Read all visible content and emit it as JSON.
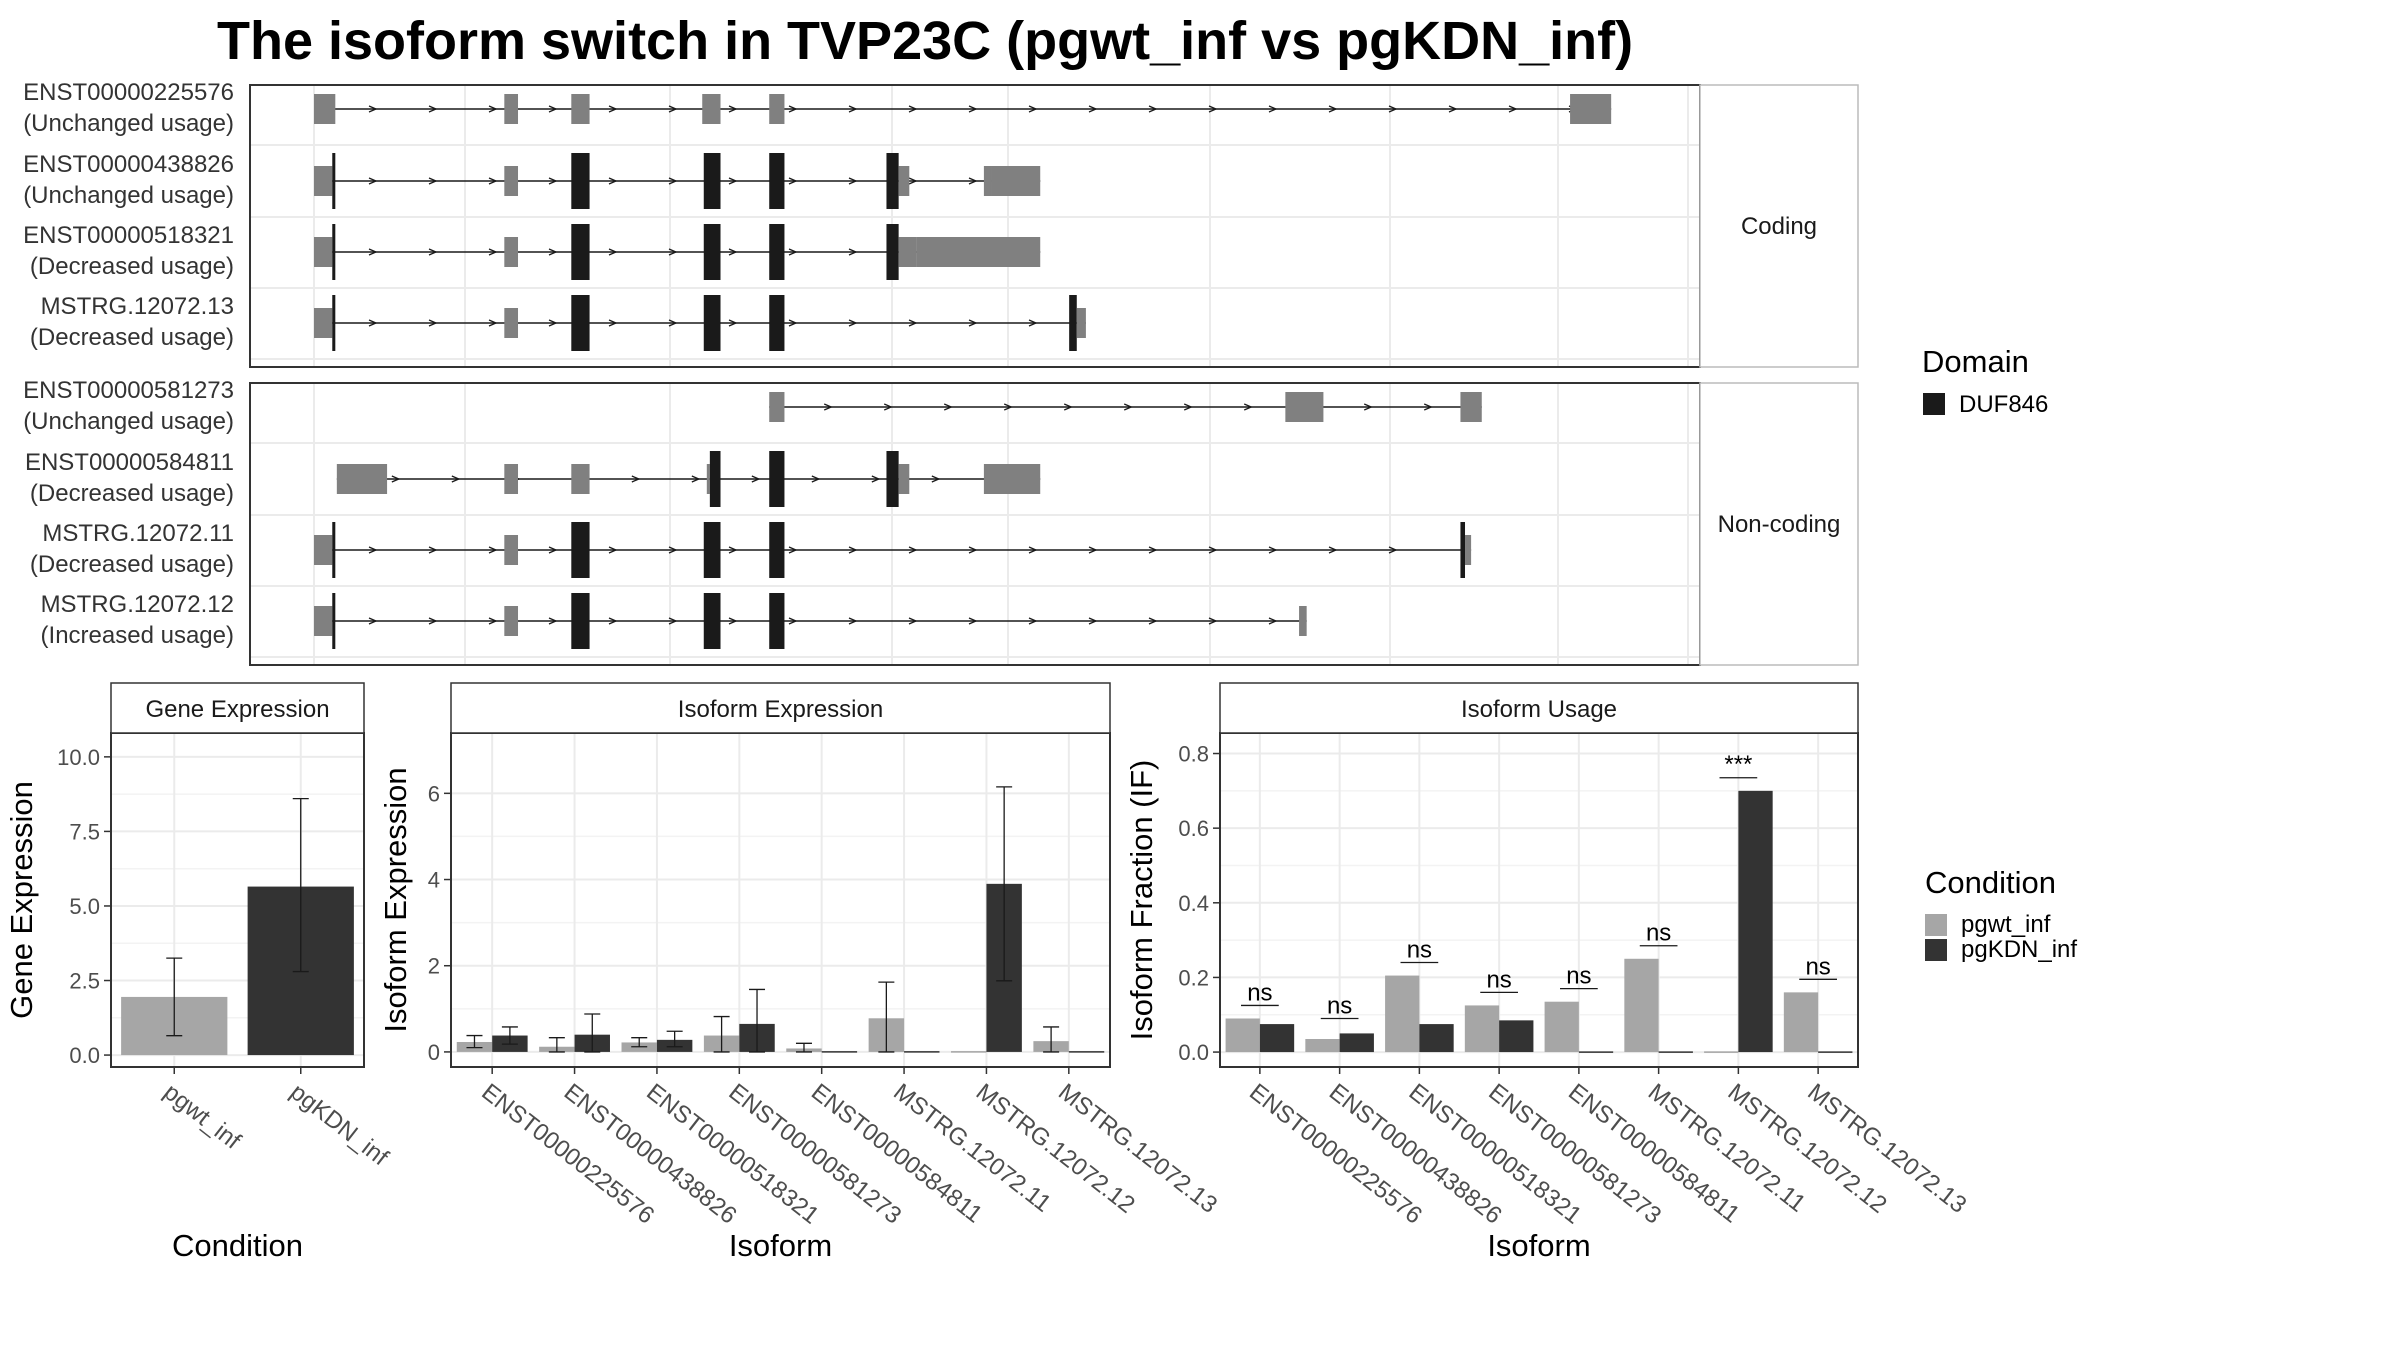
{
  "title": "The isoform switch in TVP23C (pgwt_inf vs pgKDN_inf)",
  "colors": {
    "utr": "#808080",
    "cds": "#1a1a1a",
    "pgwt": "#a6a6a6",
    "pgkdn": "#333333",
    "panel_border": "#333333",
    "strip_bg": "#ffffff",
    "grid": "#ebebeb"
  },
  "transcripts": {
    "facets": [
      {
        "label": "Coding",
        "rows": [
          {
            "line1": "ENST00000225576",
            "line2": "(Unchanged usage)",
            "span": [
              203,
              1055
            ],
            "exons": [
              [
                203,
                217,
                "u"
              ],
              [
                328,
                337,
                "u"
              ],
              [
                372,
                384,
                "u"
              ],
              [
                458,
                470,
                "u"
              ],
              [
                502,
                512,
                "u"
              ],
              [
                1028,
                1055,
                "u"
              ]
            ]
          },
          {
            "line1": "ENST00000438826",
            "line2": "(Unchanged usage)",
            "span": [
              203,
              680
            ],
            "exons": [
              [
                203,
                215,
                "u"
              ],
              [
                215,
                217,
                "c"
              ],
              [
                328,
                337,
                "u"
              ],
              [
                372,
                384,
                "c"
              ],
              [
                459,
                470,
                "c"
              ],
              [
                502,
                512,
                "c"
              ],
              [
                579,
                587,
                "c"
              ],
              [
                587,
                594,
                "u"
              ],
              [
                643,
                648,
                "u"
              ],
              [
                648,
                680,
                "u"
              ]
            ]
          },
          {
            "line1": "ENST00000518321",
            "line2": "(Decreased usage)",
            "span": [
              203,
              680
            ],
            "exons": [
              [
                203,
                215,
                "u"
              ],
              [
                215,
                217,
                "c"
              ],
              [
                328,
                337,
                "u"
              ],
              [
                372,
                384,
                "c"
              ],
              [
                459,
                470,
                "c"
              ],
              [
                502,
                512,
                "c"
              ],
              [
                579,
                587,
                "c"
              ],
              [
                587,
                599,
                "u"
              ],
              [
                599,
                680,
                "u"
              ]
            ]
          },
          {
            "line1": "MSTRG.12072.13",
            "line2": "(Decreased usage)",
            "span": [
              203,
              710
            ],
            "exons": [
              [
                203,
                215,
                "u"
              ],
              [
                215,
                217,
                "c"
              ],
              [
                328,
                337,
                "u"
              ],
              [
                372,
                384,
                "c"
              ],
              [
                459,
                470,
                "c"
              ],
              [
                502,
                512,
                "c"
              ],
              [
                699,
                704,
                "c"
              ],
              [
                704,
                710,
                "u"
              ]
            ]
          }
        ]
      },
      {
        "label": "Non-coding",
        "rows": [
          {
            "line1": "ENST00000581273",
            "line2": "(Unchanged usage)",
            "span": [
              502,
              970
            ],
            "exons": [
              [
                502,
                512,
                "u"
              ],
              [
                841,
                866,
                "u"
              ],
              [
                956,
                970,
                "u"
              ]
            ]
          },
          {
            "line1": "ENST00000584811",
            "line2": "(Decreased usage)",
            "span": [
              218,
              680
            ],
            "exons": [
              [
                218,
                251,
                "u"
              ],
              [
                328,
                337,
                "u"
              ],
              [
                372,
                384,
                "u"
              ],
              [
                461,
                463,
                "u"
              ],
              [
                463,
                470,
                "c"
              ],
              [
                502,
                512,
                "c"
              ],
              [
                579,
                587,
                "c"
              ],
              [
                587,
                594,
                "u"
              ],
              [
                643,
                680,
                "u"
              ]
            ]
          },
          {
            "line1": "MSTRG.12072.11",
            "line2": "(Decreased usage)",
            "span": [
              203,
              963
            ],
            "exons": [
              [
                203,
                215,
                "u"
              ],
              [
                215,
                217,
                "c"
              ],
              [
                328,
                337,
                "u"
              ],
              [
                372,
                384,
                "c"
              ],
              [
                459,
                470,
                "c"
              ],
              [
                502,
                512,
                "c"
              ],
              [
                956,
                959,
                "c"
              ],
              [
                959,
                963,
                "u"
              ]
            ]
          },
          {
            "line1": "MSTRG.12072.12",
            "line2": "(Increased usage)",
            "span": [
              203,
              855
            ],
            "exons": [
              [
                203,
                215,
                "u"
              ],
              [
                215,
                217,
                "c"
              ],
              [
                328,
                337,
                "u"
              ],
              [
                372,
                384,
                "c"
              ],
              [
                459,
                470,
                "c"
              ],
              [
                502,
                512,
                "c"
              ],
              [
                850,
                855,
                "u"
              ]
            ]
          }
        ]
      }
    ],
    "legend": {
      "title": "Domain",
      "items": [
        {
          "label": "DUF846",
          "color": "#1a1a1a"
        }
      ]
    }
  },
  "chart_data": [
    {
      "type": "bar",
      "strip": "Gene Expression",
      "xlabel": "Condition",
      "ylabel": "Gene Expression",
      "ylim": [
        -0.4,
        10.8
      ],
      "yticks": [
        0.0,
        2.5,
        5.0,
        7.5,
        10.0
      ],
      "ytick_labels": [
        "0.0",
        "2.5",
        "5.0",
        "7.5",
        "10.0"
      ],
      "categories": [
        "pgwt_inf",
        "pgKDN_inf"
      ],
      "values": [
        1.95,
        5.65
      ],
      "errors": [
        [
          0.65,
          3.25
        ],
        [
          2.8,
          8.6
        ]
      ]
    },
    {
      "type": "bar",
      "strip": "Isoform Expression",
      "xlabel": "Isoform",
      "ylabel": "Isoform Expression",
      "ylim": [
        -0.35,
        7.4
      ],
      "yticks": [
        0,
        2,
        4,
        6
      ],
      "ytick_labels": [
        "0",
        "2",
        "4",
        "6"
      ],
      "categories": [
        "ENST00000225576",
        "ENST00000438826",
        "ENST00000518321",
        "ENST00000581273",
        "ENST00000584811",
        "MSTRG.12072.11",
        "MSTRG.12072.12",
        "MSTRG.12072.13"
      ],
      "series": [
        {
          "name": "pgwt_inf",
          "values": [
            0.23,
            0.12,
            0.22,
            0.38,
            0.08,
            0.78,
            0.0,
            0.25
          ],
          "errors": [
            [
              0.1,
              0.38
            ],
            [
              0.0,
              0.33
            ],
            [
              0.12,
              0.33
            ],
            [
              0.0,
              0.82
            ],
            [
              0.0,
              0.2
            ],
            [
              0.0,
              1.62
            ],
            [
              0,
              0
            ],
            [
              0.0,
              0.58
            ]
          ]
        },
        {
          "name": "pgKDN_inf",
          "values": [
            0.38,
            0.4,
            0.28,
            0.65,
            0.0,
            0.0,
            3.9,
            0.0
          ],
          "errors": [
            [
              0.18,
              0.58
            ],
            [
              0.0,
              0.88
            ],
            [
              0.12,
              0.48
            ],
            [
              0.0,
              1.45
            ],
            [
              0,
              0
            ],
            [
              0,
              0
            ],
            [
              1.65,
              6.15
            ],
            [
              0,
              0
            ]
          ]
        }
      ]
    },
    {
      "type": "bar",
      "strip": "Isoform Usage",
      "xlabel": "Isoform",
      "ylabel": "Isoform Fraction (IF)",
      "ylim": [
        -0.04,
        0.855
      ],
      "yticks": [
        0.0,
        0.2,
        0.4,
        0.6,
        0.8
      ],
      "ytick_labels": [
        "0.0",
        "0.2",
        "0.4",
        "0.6",
        "0.8"
      ],
      "categories": [
        "ENST00000225576",
        "ENST00000438826",
        "ENST00000518321",
        "ENST00000581273",
        "ENST00000584811",
        "MSTRG.12072.11",
        "MSTRG.12072.12",
        "MSTRG.12072.13"
      ],
      "series": [
        {
          "name": "pgwt_inf",
          "values": [
            0.09,
            0.035,
            0.205,
            0.125,
            0.135,
            0.25,
            0.0,
            0.16
          ]
        },
        {
          "name": "pgKDN_inf",
          "values": [
            0.075,
            0.05,
            0.075,
            0.085,
            0.0,
            0.0,
            0.7,
            0.0
          ]
        }
      ],
      "significance": [
        {
          "label": "ns",
          "y": 0.125
        },
        {
          "label": "ns",
          "y": 0.09
        },
        {
          "label": "ns",
          "y": 0.24
        },
        {
          "label": "ns",
          "y": 0.16
        },
        {
          "label": "ns",
          "y": 0.17
        },
        {
          "label": "ns",
          "y": 0.285
        },
        {
          "label": "***",
          "y": 0.735
        },
        {
          "label": "ns",
          "y": 0.195
        }
      ]
    }
  ],
  "condition_legend": {
    "title": "Condition",
    "items": [
      {
        "label": "pgwt_inf",
        "color": "#a6a6a6"
      },
      {
        "label": "pgKDN_inf",
        "color": "#333333"
      }
    ]
  }
}
